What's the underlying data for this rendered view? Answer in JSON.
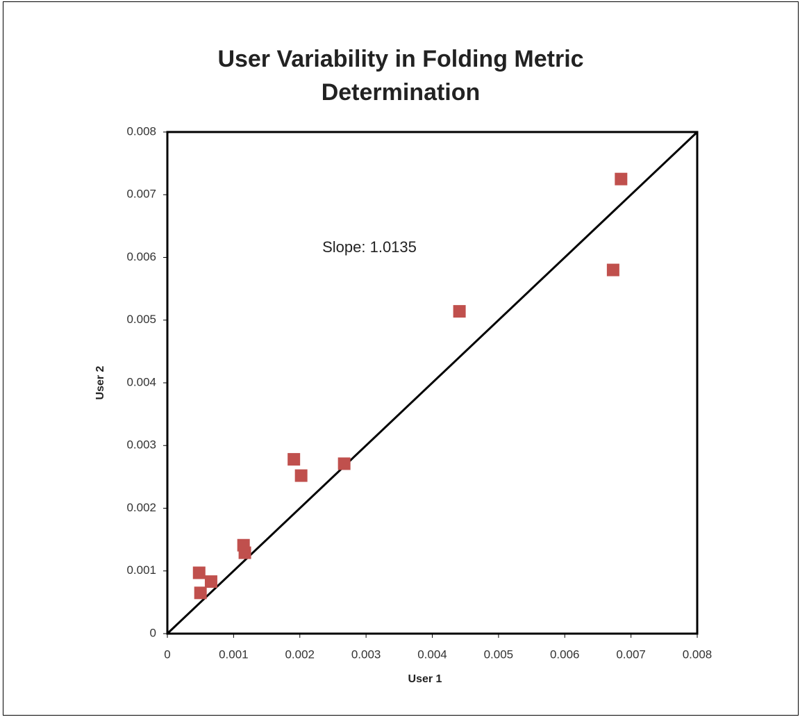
{
  "chart_data": {
    "type": "scatter",
    "title": [
      "User Variability in Folding Metric",
      "Determination"
    ],
    "x_label": "User 1",
    "y_label": "User 2",
    "annotation": "Slope: 1.0135",
    "color": "#c0504d",
    "x": [
      0.00048,
      0.0005,
      0.00066,
      0.00115,
      0.00117,
      0.00191,
      0.00202,
      0.00267,
      0.00441,
      0.00673,
      0.00685
    ],
    "values": [
      0.00097,
      0.00065,
      0.00083,
      0.00141,
      0.00129,
      0.00278,
      0.00252,
      0.00271,
      0.00514,
      0.0058,
      0.00725
    ],
    "trendline": {
      "x": [
        0,
        0.008
      ],
      "y": [
        0,
        0.008
      ],
      "color": "#000000"
    },
    "xlim": [
      0,
      0.008
    ],
    "ylim": [
      0,
      0.008
    ],
    "xticks": [
      0,
      0.001,
      0.002,
      0.003,
      0.004,
      0.005,
      0.006,
      0.007,
      0.008
    ],
    "yticks": [
      0,
      0.001,
      0.002,
      0.003,
      0.004,
      0.005,
      0.006,
      0.007,
      0.008
    ],
    "grid": false
  }
}
